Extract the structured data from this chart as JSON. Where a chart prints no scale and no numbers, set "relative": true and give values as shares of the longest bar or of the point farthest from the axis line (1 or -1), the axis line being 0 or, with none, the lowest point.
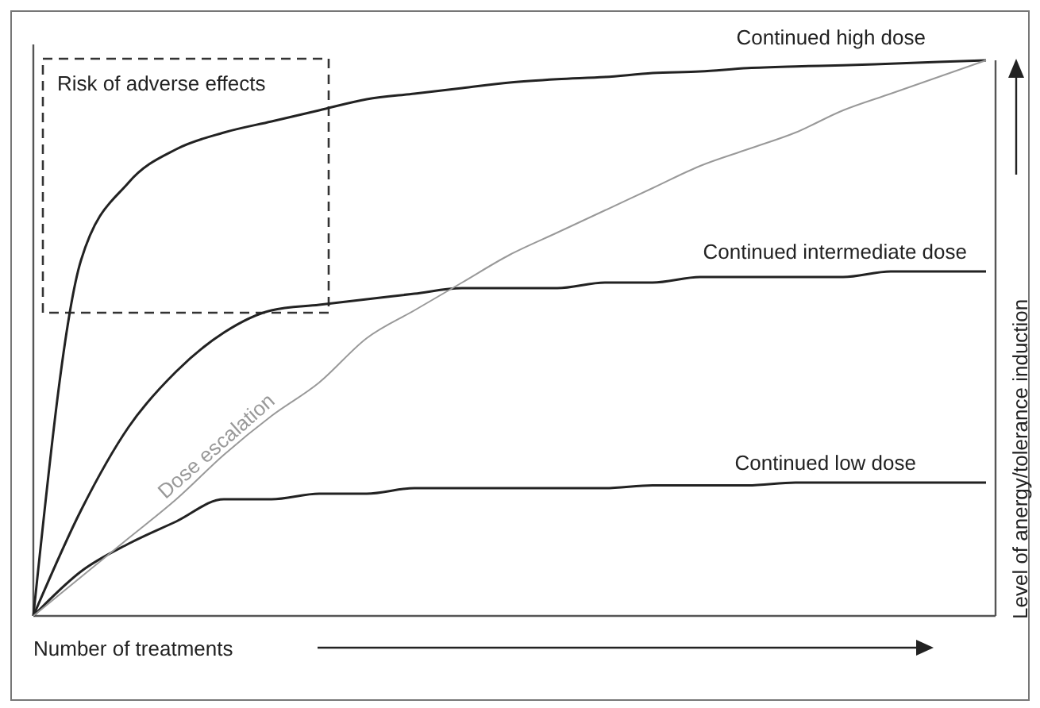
{
  "chart_data": {
    "type": "line",
    "relative": true,
    "xlabel": "Number of treatments",
    "ylabel": "Level of anergy/tolerance induction",
    "annotations": [
      "Risk of adverse effects"
    ],
    "categories": [
      null,
      null,
      null,
      null,
      null,
      null,
      null,
      null,
      null,
      null,
      null,
      null,
      null,
      null,
      null,
      null,
      null,
      null,
      null,
      null,
      null
    ],
    "series": [
      {
        "name": "Continued high dose",
        "color": "#222222",
        "values": [
          0,
          0.64,
          0.78,
          0.84,
          0.87,
          0.89,
          0.91,
          0.93,
          0.94,
          0.95,
          0.96,
          0.966,
          0.97,
          0.977,
          0.98,
          0.986,
          0.989,
          0.991,
          0.994,
          0.997,
          1
        ]
      },
      {
        "name": "Continued intermediate dose",
        "color": "#222222",
        "values": [
          0,
          0.19,
          0.34,
          0.44,
          0.51,
          0.55,
          0.56,
          0.57,
          0.58,
          0.59,
          0.59,
          0.59,
          0.6,
          0.6,
          0.61,
          0.61,
          0.61,
          0.61,
          0.62,
          0.62,
          0.62
        ]
      },
      {
        "name": "Continued low dose",
        "color": "#222222",
        "values": [
          0,
          0.08,
          0.13,
          0.17,
          0.21,
          0.21,
          0.22,
          0.22,
          0.23,
          0.23,
          0.23,
          0.23,
          0.23,
          0.235,
          0.235,
          0.235,
          0.24,
          0.24,
          0.24,
          0.24,
          0.24
        ]
      },
      {
        "name": "Dose escalation",
        "color": "#999999",
        "values": [
          0,
          0.07,
          0.14,
          0.21,
          0.29,
          0.36,
          0.42,
          0.5,
          0.55,
          0.6,
          0.65,
          0.69,
          0.73,
          0.77,
          0.81,
          0.84,
          0.87,
          0.91,
          0.94,
          0.97,
          1
        ]
      }
    ]
  }
}
